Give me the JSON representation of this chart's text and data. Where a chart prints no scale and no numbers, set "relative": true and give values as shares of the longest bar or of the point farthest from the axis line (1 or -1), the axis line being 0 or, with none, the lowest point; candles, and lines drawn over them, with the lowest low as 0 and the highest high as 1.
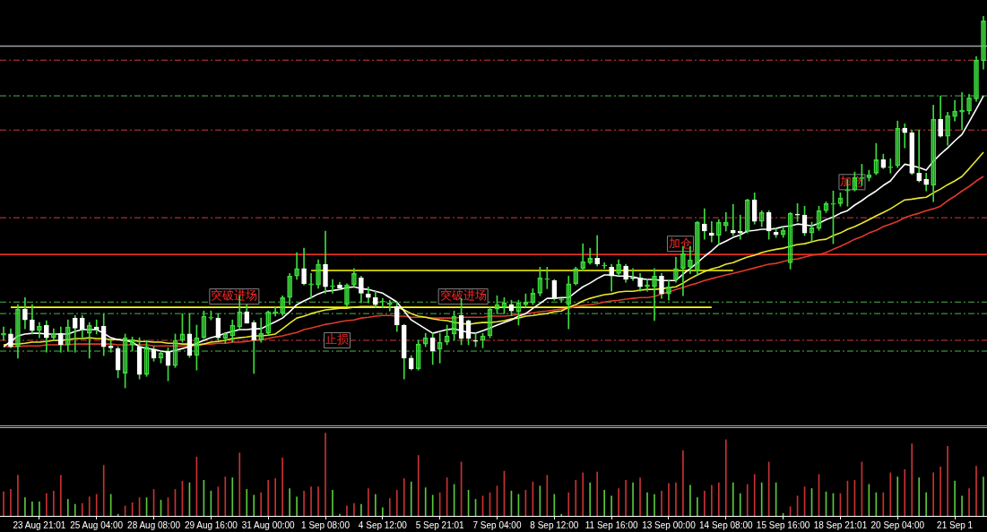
{
  "chart_data": [
    {
      "type": "candlestick",
      "relative": true,
      "tick_labels": false,
      "categories": [
        null,
        null,
        null,
        null,
        null,
        "23 Aug 21:01",
        null,
        null,
        null,
        null,
        null,
        null,
        null,
        "25 Aug 04:00",
        null,
        null,
        null,
        null,
        null,
        null,
        null,
        "28 Aug 08:00",
        null,
        null,
        null,
        null,
        null,
        null,
        null,
        "29 Aug 16:00",
        null,
        null,
        null,
        null,
        null,
        null,
        null,
        "31 Aug 00:00",
        null,
        null,
        null,
        null,
        null,
        null,
        null,
        "1 Sep 08:00",
        null,
        null,
        null,
        null,
        null,
        null,
        null,
        "4 Sep 12:00",
        null,
        null,
        null,
        null,
        null,
        null,
        null,
        "5 Sep 21:01",
        null,
        null,
        null,
        null,
        null,
        null,
        null,
        "7 Sep 04:00",
        null,
        null,
        null,
        null,
        null,
        null,
        null,
        "8 Sep 12:00",
        null,
        null,
        null,
        null,
        null,
        null,
        null,
        "11 Sep 16:00",
        null,
        null,
        null,
        null,
        null,
        null,
        null,
        "13 Sep 00:00",
        null,
        null,
        null,
        null,
        null,
        null,
        null,
        "14 Sep 08:00",
        null,
        null,
        null,
        null,
        null,
        null,
        null,
        "15 Sep 16:00",
        null,
        null,
        null,
        null,
        null,
        null,
        null,
        "18 Sep 21:01",
        null,
        null,
        null,
        null,
        null,
        null,
        null,
        "20 Sep 04:00",
        null,
        null,
        null,
        null,
        null,
        null,
        null,
        "21 Sep 1",
        null,
        null,
        null,
        null
      ],
      "ohlc": [
        [
          0.142,
          0.164,
          0.128,
          0.147
        ],
        [
          0.145,
          0.159,
          0.108,
          0.111
        ],
        [
          0.111,
          0.224,
          0.08,
          0.212
        ],
        [
          0.212,
          0.243,
          0.159,
          0.183
        ],
        [
          0.183,
          0.224,
          0.145,
          0.154
        ],
        [
          0.154,
          0.176,
          0.135,
          0.166
        ],
        [
          0.169,
          0.181,
          0.096,
          0.135
        ],
        [
          0.135,
          0.159,
          0.128,
          0.147
        ],
        [
          0.147,
          0.164,
          0.096,
          0.116
        ],
        [
          0.116,
          0.183,
          0.099,
          0.164
        ],
        [
          0.188,
          0.195,
          0.096,
          0.161
        ],
        [
          0.188,
          0.195,
          0.133,
          0.157
        ],
        [
          0.147,
          0.176,
          0.08,
          0.169
        ],
        [
          0.164,
          0.183,
          0.145,
          0.157
        ],
        [
          0.166,
          0.2,
          0.087,
          0.111
        ],
        [
          0.113,
          0.128,
          0.096,
          0.108
        ],
        [
          0.106,
          0.111,
          0.027,
          0.048
        ],
        [
          0.039,
          0.145,
          0,
          0.135
        ],
        [
          0.116,
          0.137,
          0.099,
          0.13
        ],
        [
          0.111,
          0.135,
          0.024,
          0.036
        ],
        [
          0.036,
          0.128,
          0.031,
          0.111
        ],
        [
          0.104,
          0.111,
          0.072,
          0.08
        ],
        [
          0.08,
          0.096,
          0.067,
          0.094
        ],
        [
          0.099,
          0.108,
          0.019,
          0.06
        ],
        [
          0.06,
          0.145,
          0.055,
          0.128
        ],
        [
          0.128,
          0.2,
          0.123,
          0.145
        ],
        [
          0.145,
          0.2,
          0.082,
          0.087
        ],
        [
          0.087,
          0.169,
          0.048,
          0.135
        ],
        [
          0.135,
          0.207,
          0.133,
          0.193
        ],
        [
          0.188,
          0.207,
          0.183,
          0.19
        ],
        [
          0.188,
          0.2,
          0.128,
          0.135
        ],
        [
          0.133,
          0.147,
          0.12,
          0.145
        ],
        [
          0.14,
          0.183,
          0.123,
          0.169
        ],
        [
          0.164,
          0.248,
          0.159,
          0.205
        ],
        [
          0.205,
          0.224,
          0.174,
          0.174
        ],
        [
          0.176,
          0.181,
          0.039,
          0.128
        ],
        [
          0.128,
          0.188,
          0.123,
          0.147
        ],
        [
          0.147,
          0.207,
          0.142,
          0.205
        ],
        [
          0.2,
          0.217,
          0.193,
          0.205
        ],
        [
          0.2,
          0.248,
          0.195,
          0.243
        ],
        [
          0.243,
          0.308,
          0.224,
          0.301
        ],
        [
          0.301,
          0.364,
          0.292,
          0.321
        ],
        [
          0.321,
          0.376,
          0.277,
          0.28
        ],
        [
          0.277,
          0.308,
          0.241,
          0.28
        ],
        [
          0.277,
          0.345,
          0.268,
          0.333
        ],
        [
          0.333,
          0.422,
          0.255,
          0.272
        ],
        [
          0.272,
          0.292,
          0.255,
          0.275
        ],
        [
          0.277,
          0.284,
          0.265,
          0.268
        ],
        [
          0.224,
          0.28,
          0.219,
          0.277
        ],
        [
          0.277,
          0.321,
          0.272,
          0.308
        ],
        [
          0.296,
          0.301,
          0.229,
          0.255
        ],
        [
          0.253,
          0.272,
          0.229,
          0.243
        ],
        [
          0.243,
          0.26,
          0.217,
          0.224
        ],
        [
          0.231,
          0.241,
          0.217,
          0.234
        ],
        [
          0.224,
          0.236,
          0.207,
          0.229
        ],
        [
          0.219,
          0.231,
          0.152,
          0.169
        ],
        [
          0.169,
          0.171,
          0.024,
          0.08
        ],
        [
          0.08,
          0.087,
          0.048,
          0.051
        ],
        [
          0.051,
          0.128,
          0.048,
          0.118
        ],
        [
          0.118,
          0.147,
          0.111,
          0.135
        ],
        [
          0.135,
          0.147,
          0.063,
          0.099
        ],
        [
          0.104,
          0.147,
          0.067,
          0.123
        ],
        [
          0.123,
          0.169,
          0.116,
          0.14
        ],
        [
          0.145,
          0.207,
          0.128,
          0.193
        ],
        [
          0.195,
          0.241,
          0.116,
          0.133
        ],
        [
          0.181,
          0.183,
          0.116,
          0.133
        ],
        [
          0.128,
          0.147,
          0.111,
          0.125
        ],
        [
          0.128,
          0.147,
          0.108,
          0.14
        ],
        [
          0.14,
          0.219,
          0.135,
          0.212
        ],
        [
          0.212,
          0.248,
          0.2,
          0.224
        ],
        [
          0.217,
          0.243,
          0.2,
          0.229
        ],
        [
          0.224,
          0.236,
          0.195,
          0.207
        ],
        [
          0.205,
          0.236,
          0.169,
          0.229
        ],
        [
          0.224,
          0.253,
          0.217,
          0.231
        ],
        [
          0.229,
          0.267,
          0.224,
          0.255
        ],
        [
          0.255,
          0.325,
          0.248,
          0.296
        ],
        [
          0.292,
          0.325,
          0.267,
          0.294
        ],
        [
          0.289,
          0.292,
          0.236,
          0.241
        ],
        [
          0.236,
          0.241,
          0.231,
          0.239
        ],
        [
          0.224,
          0.301,
          0.159,
          0.28
        ],
        [
          0.28,
          0.325,
          0.277,
          0.321
        ],
        [
          0.321,
          0.388,
          0.316,
          0.34
        ],
        [
          0.337,
          0.376,
          0.333,
          0.349
        ],
        [
          0.349,
          0.41,
          0.328,
          0.333
        ],
        [
          0.328,
          0.337,
          0.321,
          0.33
        ],
        [
          0.325,
          0.333,
          0.26,
          0.301
        ],
        [
          0.308,
          0.345,
          0.304,
          0.333
        ],
        [
          0.328,
          0.333,
          0.284,
          0.292
        ],
        [
          0.296,
          0.321,
          0.289,
          0.294
        ],
        [
          0.296,
          0.308,
          0.26,
          0.272
        ],
        [
          0.272,
          0.292,
          0.26,
          0.277
        ],
        [
          0.272,
          0.321,
          0.181,
          0.301
        ],
        [
          0.301,
          0.308,
          0.241,
          0.253
        ],
        [
          0.253,
          0.289,
          0.236,
          0.272
        ],
        [
          0.292,
          0.352,
          0.284,
          0.321
        ],
        [
          0.321,
          0.381,
          0.248,
          0.361
        ],
        [
          0.325,
          0.381,
          0.308,
          0.345
        ],
        [
          0.316,
          0.448,
          0.304,
          0.446
        ],
        [
          0.441,
          0.482,
          0.4,
          0.422
        ],
        [
          0.417,
          0.448,
          0.393,
          0.41
        ],
        [
          0.41,
          0.453,
          0.386,
          0.446
        ],
        [
          0.436,
          0.472,
          0.422,
          0.446
        ],
        [
          0.424,
          0.494,
          0.41,
          0.417
        ],
        [
          0.422,
          0.465,
          0.4,
          0.417
        ],
        [
          0.422,
          0.508,
          0.417,
          0.506
        ],
        [
          0.506,
          0.525,
          0.441,
          0.448
        ],
        [
          0.448,
          0.477,
          0.434,
          0.472
        ],
        [
          0.472,
          0.477,
          0.4,
          0.422
        ],
        [
          0.419,
          0.429,
          0.405,
          0.412
        ],
        [
          0.412,
          0.434,
          0.405,
          0.424
        ],
        [
          0.337,
          0.472,
          0.32,
          0.47
        ],
        [
          0.467,
          0.496,
          0.448,
          0.465
        ],
        [
          0.465,
          0.489,
          0.41,
          0.417
        ],
        [
          0.417,
          0.446,
          0.393,
          0.431
        ],
        [
          0.429,
          0.489,
          0.424,
          0.477
        ],
        [
          0.477,
          0.501,
          0.472,
          0.496
        ],
        [
          0.494,
          0.53,
          0.388,
          0.496
        ],
        [
          0.496,
          0.525,
          0.489,
          0.511
        ],
        [
          0.53,
          0.561,
          0.489,
          0.533
        ],
        [
          0.533,
          0.581,
          0.53,
          0.566
        ],
        [
          0.566,
          0.602,
          0.545,
          0.566
        ],
        [
          0.566,
          0.586,
          0.557,
          0.574
        ],
        [
          0.578,
          0.658,
          0.574,
          0.614
        ],
        [
          0.614,
          0.629,
          0.59,
          0.593
        ],
        [
          0.595,
          0.617,
          0.578,
          0.595
        ],
        [
          0.598,
          0.718,
          0.593,
          0.699
        ],
        [
          0.699,
          0.711,
          0.646,
          0.687
        ],
        [
          0.687,
          0.694,
          0.574,
          0.578
        ],
        [
          0.578,
          0.694,
          0.554,
          0.557
        ],
        [
          0.561,
          0.578,
          0.53,
          0.547
        ],
        [
          0.545,
          0.761,
          0.501,
          0.723
        ],
        [
          0.723,
          0.786,
          0.675,
          0.677
        ],
        [
          0.677,
          0.742,
          0.653,
          0.733
        ],
        [
          0.73,
          0.774,
          0.718,
          0.745
        ],
        [
          0.742,
          0.795,
          0.694,
          0.747
        ],
        [
          0.745,
          0.79,
          0.737,
          0.781
        ],
        [
          0.778,
          0.892,
          0.771,
          0.882
        ],
        [
          0.88,
          1,
          0.858,
          0.988
        ]
      ],
      "series": [
        {
          "type": "line",
          "color": "#ffffff",
          "values": [
            0.111,
            0.125,
            0.14,
            0.145,
            0.147,
            0.147,
            0.145,
            0.145,
            0.145,
            0.145,
            0.152,
            0.157,
            0.157,
            0.157,
            0.147,
            0.135,
            0.13,
            0.128,
            0.123,
            0.111,
            0.106,
            0.104,
            0.099,
            0.096,
            0.101,
            0.106,
            0.111,
            0.12,
            0.128,
            0.135,
            0.14,
            0.147,
            0.152,
            0.157,
            0.157,
            0.159,
            0.159,
            0.169,
            0.178,
            0.188,
            0.205,
            0.224,
            0.234,
            0.243,
            0.253,
            0.26,
            0.262,
            0.265,
            0.27,
            0.272,
            0.267,
            0.265,
            0.26,
            0.255,
            0.243,
            0.231,
            0.207,
            0.183,
            0.171,
            0.159,
            0.147,
            0.152,
            0.157,
            0.159,
            0.154,
            0.149,
            0.147,
            0.154,
            0.161,
            0.169,
            0.176,
            0.183,
            0.193,
            0.2,
            0.214,
            0.227,
            0.241,
            0.241,
            0.243,
            0.243,
            0.258,
            0.272,
            0.282,
            0.294,
            0.304,
            0.304,
            0.301,
            0.301,
            0.299,
            0.294,
            0.292,
            0.292,
            0.289,
            0.289,
            0.289,
            0.306,
            0.321,
            0.337,
            0.354,
            0.369,
            0.386,
            0.395,
            0.405,
            0.412,
            0.422,
            0.424,
            0.427,
            0.427,
            0.429,
            0.434,
            0.436,
            0.441,
            0.439,
            0.436,
            0.443,
            0.453,
            0.46,
            0.47,
            0.477,
            0.492,
            0.504,
            0.518,
            0.53,
            0.545,
            0.557,
            0.581,
            0.602,
            0.598,
            0.593,
            0.586,
            0.61,
            0.629,
            0.646,
            0.665,
            0.682,
            0.716,
            0.75,
            0.786
          ]
        },
        {
          "type": "line",
          "color": "#e8e830",
          "values": [
            0.116,
            0.118,
            0.118,
            0.12,
            0.123,
            0.123,
            0.125,
            0.128,
            0.128,
            0.13,
            0.133,
            0.133,
            0.135,
            0.133,
            0.133,
            0.13,
            0.13,
            0.128,
            0.128,
            0.125,
            0.125,
            0.123,
            0.123,
            0.12,
            0.12,
            0.118,
            0.118,
            0.116,
            0.118,
            0.123,
            0.125,
            0.128,
            0.133,
            0.135,
            0.137,
            0.14,
            0.14,
            0.142,
            0.145,
            0.159,
            0.174,
            0.188,
            0.193,
            0.2,
            0.205,
            0.21,
            0.212,
            0.214,
            0.214,
            0.217,
            0.219,
            0.219,
            0.219,
            0.217,
            0.217,
            0.217,
            0.21,
            0.2,
            0.193,
            0.19,
            0.186,
            0.183,
            0.181,
            0.176,
            0.174,
            0.171,
            0.174,
            0.176,
            0.176,
            0.178,
            0.181,
            0.186,
            0.188,
            0.193,
            0.195,
            0.198,
            0.2,
            0.205,
            0.207,
            0.217,
            0.224,
            0.234,
            0.241,
            0.246,
            0.251,
            0.253,
            0.258,
            0.26,
            0.26,
            0.263,
            0.265,
            0.265,
            0.267,
            0.27,
            0.272,
            0.282,
            0.294,
            0.304,
            0.313,
            0.32,
            0.325,
            0.333,
            0.337,
            0.345,
            0.352,
            0.357,
            0.364,
            0.369,
            0.373,
            0.376,
            0.381,
            0.386,
            0.388,
            0.393,
            0.398,
            0.4,
            0.41,
            0.417,
            0.427,
            0.434,
            0.443,
            0.453,
            0.463,
            0.472,
            0.482,
            0.494,
            0.506,
            0.508,
            0.511,
            0.513,
            0.525,
            0.535,
            0.547,
            0.557,
            0.569,
            0.59,
            0.612,
            0.634
          ]
        },
        {
          "type": "line",
          "color": "#e03a2a",
          "values": [
            0.111,
            0.111,
            0.111,
            0.113,
            0.113,
            0.113,
            0.116,
            0.116,
            0.116,
            0.116,
            0.118,
            0.118,
            0.118,
            0.118,
            0.118,
            0.118,
            0.116,
            0.116,
            0.116,
            0.116,
            0.116,
            0.113,
            0.113,
            0.113,
            0.113,
            0.113,
            0.114,
            0.113,
            0.118,
            0.118,
            0.12,
            0.12,
            0.123,
            0.123,
            0.125,
            0.128,
            0.13,
            0.133,
            0.137,
            0.14,
            0.145,
            0.149,
            0.157,
            0.161,
            0.166,
            0.171,
            0.174,
            0.178,
            0.181,
            0.183,
            0.188,
            0.19,
            0.193,
            0.195,
            0.195,
            0.193,
            0.193,
            0.19,
            0.19,
            0.19,
            0.188,
            0.188,
            0.188,
            0.188,
            0.19,
            0.19,
            0.19,
            0.19,
            0.193,
            0.193,
            0.193,
            0.195,
            0.198,
            0.2,
            0.202,
            0.205,
            0.207,
            0.21,
            0.212,
            0.214,
            0.219,
            0.222,
            0.224,
            0.227,
            0.231,
            0.234,
            0.236,
            0.239,
            0.241,
            0.243,
            0.243,
            0.246,
            0.253,
            0.258,
            0.265,
            0.27,
            0.277,
            0.282,
            0.289,
            0.294,
            0.299,
            0.304,
            0.308,
            0.313,
            0.318,
            0.323,
            0.328,
            0.333,
            0.335,
            0.34,
            0.345,
            0.347,
            0.352,
            0.357,
            0.359,
            0.364,
            0.373,
            0.381,
            0.39,
            0.4,
            0.407,
            0.417,
            0.424,
            0.434,
            0.441,
            0.448,
            0.458,
            0.465,
            0.47,
            0.477,
            0.482,
            0.489,
            0.504,
            0.516,
            0.53,
            0.542,
            0.557,
            0.569
          ]
        },
        {
          "type": "line",
          "color": "#ffff00",
          "values": [
            null,
            0.217,
            0.217,
            0.217,
            0.217,
            0.217,
            0.217,
            0.217,
            0.217,
            0.217,
            0.217,
            0.217,
            0.217,
            0.217,
            0.217,
            0.217,
            0.217,
            0.217,
            0.217,
            0.217,
            0.217,
            0.217,
            0.217,
            0.217,
            0.217,
            0.217,
            0.217,
            0.217,
            0.217,
            0.217,
            0.217,
            0.217,
            0.217,
            0.217,
            0.217,
            0.217,
            0.217,
            0.217,
            0.217,
            0.217,
            0.217,
            0.217,
            0.217,
            0.217,
            0.217,
            0.217,
            0.217,
            0.217,
            0.217,
            0.217,
            0.217,
            0.217,
            0.217,
            0.217,
            0.217,
            0.217,
            0.217,
            0.217,
            0.217,
            0.217,
            0.217,
            0.217,
            0.217,
            0.217,
            0.217,
            0.217,
            0.217,
            0.217,
            0.217,
            0.217,
            0.217,
            0.217,
            0.217,
            0.217,
            0.217,
            0.217,
            0.217,
            0.217,
            0.217,
            0.217,
            0.217,
            0.217,
            0.217,
            0.217,
            0.217,
            0.217,
            0.217,
            0.217,
            0.217,
            0.217,
            0.217,
            0.217,
            0.217,
            0.217,
            0.217,
            0.217,
            0.217,
            0.217,
            0.217,
            0.217,
            null,
            null,
            null,
            null,
            null,
            null,
            null,
            null,
            null,
            null,
            null,
            null,
            null,
            null,
            null,
            null,
            null,
            null,
            null,
            null,
            null,
            null,
            null,
            null,
            null,
            null,
            null,
            null,
            null,
            null,
            null,
            null,
            null,
            null,
            null,
            null,
            null,
            null
          ]
        },
        {
          "type": "line",
          "color": "#ffff00",
          "values": [
            null,
            null,
            null,
            null,
            null,
            null,
            null,
            null,
            null,
            null,
            null,
            null,
            null,
            null,
            null,
            null,
            null,
            null,
            null,
            null,
            null,
            null,
            null,
            null,
            null,
            null,
            null,
            null,
            null,
            null,
            null,
            null,
            null,
            null,
            null,
            null,
            null,
            null,
            null,
            null,
            null,
            null,
            null,
            0.316,
            0.316,
            0.316,
            0.316,
            0.316,
            0.316,
            0.316,
            0.316,
            0.316,
            0.316,
            0.316,
            0.316,
            0.316,
            0.316,
            0.316,
            0.316,
            0.316,
            0.316,
            0.316,
            0.316,
            0.316,
            0.316,
            0.316,
            0.316,
            0.316,
            0.316,
            0.316,
            0.316,
            0.316,
            0.316,
            0.316,
            0.316,
            0.316,
            0.316,
            0.316,
            0.316,
            0.316,
            0.316,
            0.316,
            0.316,
            0.316,
            0.316,
            0.316,
            0.316,
            0.316,
            0.316,
            0.316,
            0.316,
            0.316,
            0.316,
            0.316,
            0.316,
            0.316,
            0.316,
            0.316,
            0.316,
            0.316,
            0.316,
            0.316,
            0.316,
            null,
            null,
            null,
            null,
            null,
            null,
            null,
            null,
            null,
            null,
            null,
            null,
            null,
            null,
            null,
            null,
            null,
            null,
            null,
            null,
            null,
            null,
            null,
            null,
            null,
            null,
            null,
            null,
            null,
            null,
            null,
            null,
            null,
            null,
            null
          ]
        }
      ],
      "ref_lines": [
        {
          "axis": "y",
          "value": 0.92,
          "color": "#a0a0a8",
          "line_style": "solid"
        },
        {
          "axis": "y",
          "value": 0.882,
          "color": "#d03c3c",
          "line_style": "dashed"
        },
        {
          "axis": "y",
          "value": 0.786,
          "color": "#50b050",
          "line_style": "dashed"
        },
        {
          "axis": "y",
          "value": 0.694,
          "color": "#d03c3c",
          "line_style": "dashed"
        },
        {
          "axis": "y",
          "value": 0.458,
          "color": "#d03c3c",
          "line_style": "dashed"
        },
        {
          "axis": "y",
          "value": 0.359,
          "color": "#e03020",
          "line_style": "solid"
        },
        {
          "axis": "y",
          "value": 0.231,
          "color": "#50b050",
          "line_style": "dashed"
        },
        {
          "axis": "y",
          "value": 0.2,
          "color": "#50b050",
          "line_style": "dashed"
        },
        {
          "axis": "y",
          "value": 0.128,
          "color": "#d03c3c",
          "line_style": "dashed"
        },
        {
          "axis": "y",
          "value": 0.099,
          "color": "#50b050",
          "line_style": "dashed"
        }
      ],
      "annotations": [
        {
          "text": "突破进场",
          "x": "29 Aug 16:00",
          "y": 0.217
        },
        {
          "text": "止损",
          "x": "1 Sep 08:00",
          "y": 0.099
        },
        {
          "text": "突破进场",
          "x": "5 Sep 21:01",
          "y": 0.217
        },
        {
          "text": "加仓",
          "x": "13 Sep 00:00",
          "y": 0.359
        },
        {
          "text": "加仓",
          "x": "18 Sep 21:01",
          "y": 0.525
        }
      ]
    },
    {
      "type": "bar",
      "relative": true,
      "categories": [
        null,
        null,
        null,
        null,
        null,
        "23 Aug 21:01",
        null,
        null,
        null,
        null,
        null,
        null,
        null,
        "25 Aug 04:00",
        null,
        null,
        null,
        null,
        null,
        null,
        null,
        "28 Aug 08:00",
        null,
        null,
        null,
        null,
        null,
        null,
        null,
        "29 Aug 16:00",
        null,
        null,
        null,
        null,
        null,
        null,
        null,
        "31 Aug 00:00",
        null,
        null,
        null,
        null,
        null,
        null,
        null,
        "1 Sep 08:00",
        null,
        null,
        null,
        null,
        null,
        null,
        null,
        "4 Sep 12:00",
        null,
        null,
        null,
        null,
        null,
        null,
        null,
        "5 Sep 21:01",
        null,
        null,
        null,
        null,
        null,
        null,
        null,
        "7 Sep 04:00",
        null,
        null,
        null,
        null,
        null,
        null,
        null,
        "8 Sep 12:00",
        null,
        null,
        null,
        null,
        null,
        null,
        null,
        "11 Sep 16:00",
        null,
        null,
        null,
        null,
        null,
        null,
        null,
        "13 Sep 00:00",
        null,
        null,
        null,
        null,
        null,
        null,
        null,
        "14 Sep 08:00",
        null,
        null,
        null,
        null,
        null,
        null,
        null,
        "15 Sep 16:00",
        null,
        null,
        null,
        null,
        null,
        null,
        null,
        "18 Sep 21:01",
        null,
        null,
        null,
        null,
        null,
        null,
        null,
        "20 Sep 04:00",
        null,
        null,
        null,
        null,
        null,
        null,
        null,
        "21 Sep 1",
        null,
        null,
        null,
        null
      ],
      "values": [
        0.29,
        0.32,
        0.49,
        0.22,
        0.17,
        0.17,
        0.27,
        0.3,
        0.49,
        0.2,
        0.14,
        0.15,
        0.23,
        0.26,
        0.61,
        0.26,
        0.02,
        0.12,
        0.16,
        0.22,
        0.22,
        0.32,
        0.19,
        0.22,
        0.32,
        0.42,
        0.4,
        0.71,
        0.43,
        0.3,
        0.35,
        0.47,
        0.46,
        0.76,
        0.32,
        0.25,
        0.28,
        0.43,
        0.45,
        0.7,
        0.33,
        0.23,
        0.3,
        0.35,
        0.35,
        1,
        0.31,
        0.02,
        0.12,
        0.15,
        0.14,
        0.33,
        0.26,
        0.1,
        0.21,
        0.31,
        0.45,
        0.41,
        0.73,
        0.34,
        0.25,
        0.28,
        0.46,
        0.38,
        0.65,
        0.31,
        0.2,
        0.24,
        0.28,
        0.36,
        0.54,
        0.3,
        0.26,
        0.31,
        0.41,
        0.36,
        0.49,
        0.26,
        0.02,
        0.28,
        0.43,
        0.52,
        0.4,
        0.53,
        0.31,
        0.24,
        0.33,
        0.43,
        0.4,
        0.46,
        0.28,
        0.26,
        0.3,
        0.39,
        0.4,
        0.79,
        0.37,
        0.22,
        0.3,
        0.37,
        0.4,
        0.92,
        0.4,
        0.27,
        0.38,
        0.5,
        0.4,
        0.65,
        0.4,
        0.03,
        0.11,
        0.24,
        0.35,
        0.33,
        0.5,
        0.29,
        0.27,
        0.27,
        0.42,
        0.43,
        0.65,
        0.38,
        0.28,
        0.28,
        0.52,
        0.47,
        0.56,
        0.87,
        0.46,
        0.28,
        0.52,
        0.59,
        0.84,
        0.42,
        0.24,
        0.33,
        0.6,
        0.47
      ],
      "colors": [
        "#c83232",
        "#c83232",
        "#c83232",
        "#5ac83c",
        "#5ac83c",
        "#5ac83c",
        "#c83232",
        "#c83232",
        "#c83232",
        "#5ac83c",
        "#5ac83c",
        "#c83232",
        "#c83232",
        "#c83232",
        "#c83232",
        "#5ac83c",
        "#5ac83c",
        "#c83232",
        "#c83232",
        "#c83232",
        "#5ac83c",
        "#c83232",
        "#5ac83c",
        "#c83232",
        "#c83232",
        "#c83232",
        "#5ac83c",
        "#c83232",
        "#5ac83c",
        "#5ac83c",
        "#c83232",
        "#c83232",
        "#5ac83c",
        "#c83232",
        "#5ac83c",
        "#5ac83c",
        "#c83232",
        "#c83232",
        "#c83232",
        "#c83232",
        "#5ac83c",
        "#5ac83c",
        "#c83232",
        "#c83232",
        "#c83232",
        "#c83232",
        "#5ac83c",
        "#5ac83c",
        "#c83232",
        "#c83232",
        "#5ac83c",
        "#c83232",
        "#5ac83c",
        "#5ac83c",
        "#c83232",
        "#c83232",
        "#c83232",
        "#5ac83c",
        "#c83232",
        "#5ac83c",
        "#5ac83c",
        "#c83232",
        "#c83232",
        "#5ac83c",
        "#c83232",
        "#5ac83c",
        "#5ac83c",
        "#c83232",
        "#c83232",
        "#c83232",
        "#c83232",
        "#5ac83c",
        "#5ac83c",
        "#c83232",
        "#c83232",
        "#5ac83c",
        "#c83232",
        "#5ac83c",
        "#5ac83c",
        "#c83232",
        "#c83232",
        "#c83232",
        "#5ac83c",
        "#c83232",
        "#5ac83c",
        "#5ac83c",
        "#c83232",
        "#c83232",
        "#5ac83c",
        "#c83232",
        "#5ac83c",
        "#5ac83c",
        "#c83232",
        "#c83232",
        "#c83232",
        "#c83232",
        "#5ac83c",
        "#5ac83c",
        "#c83232",
        "#c83232",
        "#c83232",
        "#c83232",
        "#5ac83c",
        "#5ac83c",
        "#c83232",
        "#c83232",
        "#5ac83c",
        "#c83232",
        "#5ac83c",
        "#5ac83c",
        "#c83232",
        "#c83232",
        "#c83232",
        "#5ac83c",
        "#c83232",
        "#5ac83c",
        "#5ac83c",
        "#c83232",
        "#c83232",
        "#c83232",
        "#c83232",
        "#5ac83c",
        "#5ac83c",
        "#c83232",
        "#c83232",
        "#5ac83c",
        "#c83232",
        "#c83232",
        "#5ac83c",
        "#5ac83c",
        "#c83232",
        "#c83232",
        "#c83232",
        "#5ac83c",
        "#5ac83c",
        "#c83232",
        "#c83232",
        "#5ac83c"
      ]
    }
  ]
}
